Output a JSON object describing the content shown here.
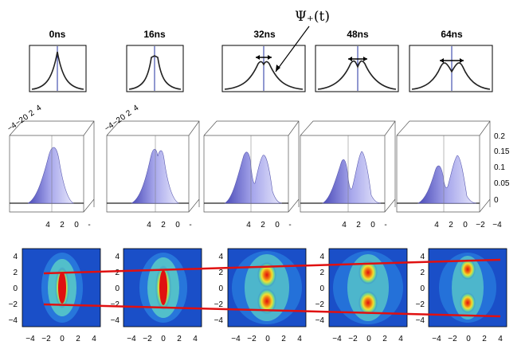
{
  "figure": {
    "time_labels": [
      "0ns",
      "16ns",
      "32ns",
      "48ns",
      "64ns"
    ],
    "annotation": "Ψ₊(t)",
    "surface_z_ticks": [
      "0.2",
      "0.15",
      "0.1",
      "0.05",
      "0"
    ],
    "surface_x_ticks": [
      "4",
      "2",
      "0",
      "-"
    ],
    "surface_x_ticks_last": [
      "4",
      "2",
      "0",
      "−2",
      "−4"
    ],
    "surface_top_ticks": [
      "−4",
      "−2",
      "0",
      "2",
      "4"
    ],
    "map_ticks_x": [
      "−4",
      "−2",
      "0",
      "2",
      "4"
    ],
    "map_ticks_y": [
      "4",
      "2",
      "0",
      "−2",
      "−4"
    ],
    "profile_split": [
      0,
      0.1,
      0.35,
      0.55,
      0.75
    ],
    "colors": {
      "profile": "#222222",
      "center_line": "#2030a0",
      "guide_line": "#e01010",
      "map_bg": "#1a4fc8"
    }
  }
}
